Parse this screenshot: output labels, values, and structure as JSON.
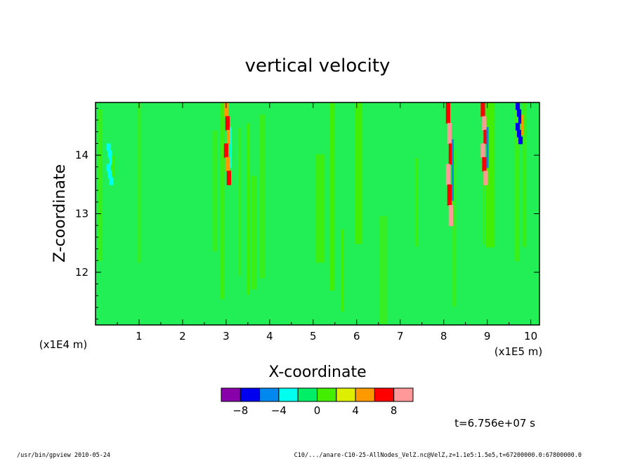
{
  "chart_data": {
    "type": "heatmap",
    "title": "vertical velocity",
    "xlabel": "X-coordinate",
    "ylabel": "Z-coordinate",
    "x_unit": "(x1E5 m)",
    "y_unit": "(x1E4 m)",
    "xlim": [
      0,
      10.2
    ],
    "ylim": [
      11.1,
      14.9
    ],
    "xticks": [
      "1",
      "2",
      "3",
      "4",
      "5",
      "6",
      "7",
      "8",
      "9",
      "10"
    ],
    "yticks": [
      "12",
      "13",
      "14"
    ],
    "colorbar": {
      "levels": [
        -10,
        -8,
        -6,
        -4,
        -2,
        0,
        2,
        4,
        6,
        8,
        10
      ],
      "tick_labels": [
        "-8",
        "-4",
        "0",
        "4",
        "8"
      ],
      "colors": [
        "#8800aa",
        "#0000ee",
        "#0088ee",
        "#00ffee",
        "#00ee66",
        "#44ee00",
        "#ddee00",
        "#ff9900",
        "#ff0000",
        "#ff9999"
      ]
    },
    "base_color": "#22ee55",
    "features": [
      {
        "x": 3.0,
        "z": [
          13.5,
          14.9
        ],
        "value": 6
      },
      {
        "x": 0.3,
        "z": [
          13.5,
          14.2
        ],
        "value": -3
      },
      {
        "x": 8.1,
        "z": [
          12.8,
          14.9
        ],
        "value": 9
      },
      {
        "x": 8.9,
        "z": [
          13.5,
          14.9
        ],
        "value": 9
      },
      {
        "x": 9.7,
        "z": [
          14.2,
          14.9
        ],
        "value": -8
      }
    ],
    "time_label": "t=6.756e+07 s"
  },
  "footer": {
    "left": "/usr/bin/gpview  2010-05-24",
    "right": "C10/.../anare-C10-25-AllNodes_VelZ.nc@VelZ,z=1.1e5:1.5e5,t=67200000.0:67800000.0"
  }
}
